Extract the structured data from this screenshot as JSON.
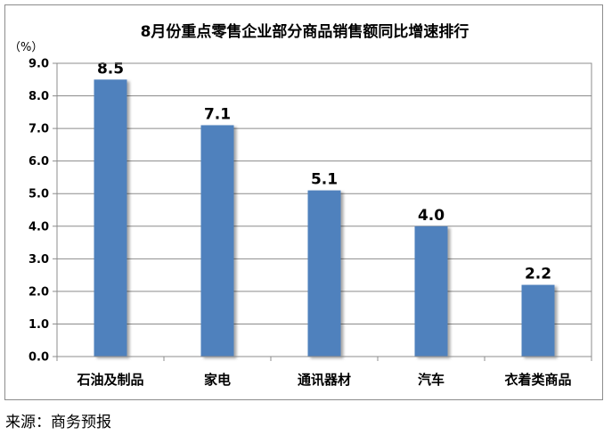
{
  "chart_data": {
    "type": "bar",
    "title": "8月份重点零售企业部分商品销售额同比增速排行",
    "ylabel": "（%）",
    "xlabel": "",
    "categories": [
      "石油及制品",
      "家电",
      "通讯器材",
      "汽车",
      "衣着类商品"
    ],
    "values": [
      8.5,
      7.1,
      5.1,
      4.0,
      2.2
    ],
    "value_labels": [
      "8.5",
      "7.1",
      "5.1",
      "4.0",
      "2.2"
    ],
    "ylim": [
      0,
      9
    ],
    "yticks": [
      "0.0",
      "1.0",
      "2.0",
      "3.0",
      "4.0",
      "5.0",
      "6.0",
      "7.0",
      "8.0",
      "9.0"
    ],
    "grid": true,
    "legend": "none",
    "bar_color": "#4f81bd"
  },
  "footer": {
    "source": "来源：商务预报"
  }
}
